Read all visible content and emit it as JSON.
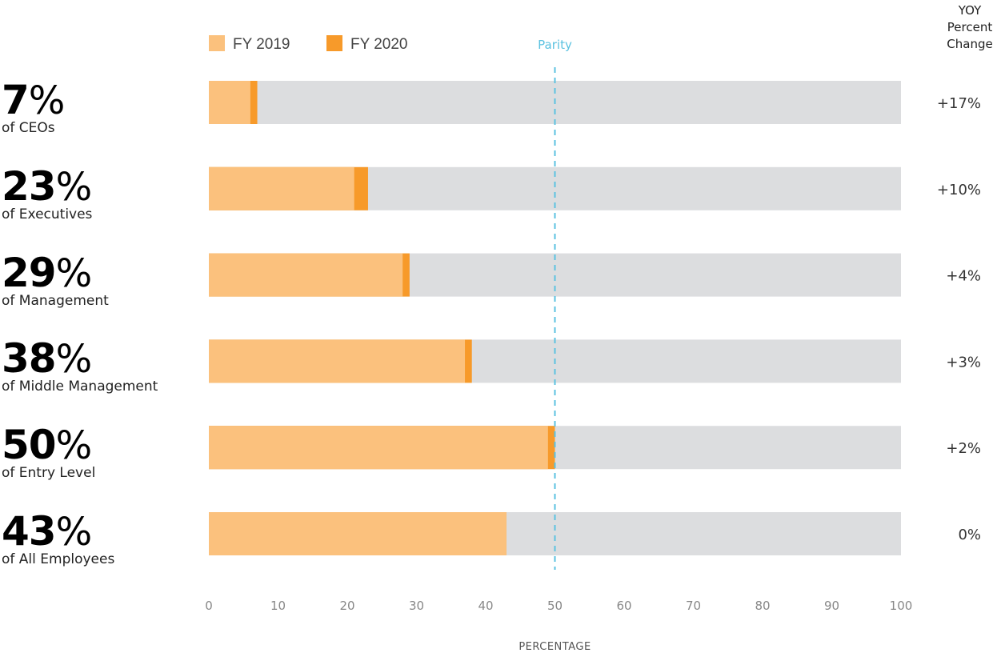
{
  "chart_data": {
    "type": "bar",
    "orientation": "horizontal",
    "stacked": true,
    "categories": [
      "of CEOs",
      "of Executives",
      "of Management",
      "of Middle Management",
      "of Entry Level",
      "of All Employees"
    ],
    "headline_values": [
      "7",
      "23",
      "29",
      "38",
      "50",
      "43"
    ],
    "headline_unit": "%",
    "series": [
      {
        "name": "FY 2019",
        "color": "#fbc17d",
        "values": [
          6,
          21,
          28,
          37,
          49,
          43
        ]
      },
      {
        "name": "FY 2020",
        "color": "#f79a2a",
        "values": [
          7,
          23,
          29,
          38,
          50,
          43
        ]
      }
    ],
    "background_max": 100,
    "background_color": "#dcdddf",
    "xlabel": "PERCENTAGE",
    "xlim": [
      0,
      100
    ],
    "xticks": [
      "0",
      "10",
      "20",
      "30",
      "40",
      "50",
      "60",
      "70",
      "80",
      "90",
      "100"
    ],
    "reference_line": {
      "label": "Parity",
      "value": 50,
      "color": "#5bc2e0"
    },
    "yoy_header": [
      "YOY",
      "Percent",
      "Change"
    ],
    "yoy_change": [
      "+17%",
      "+10%",
      "+4%",
      "+3%",
      "+2%",
      "0%"
    ],
    "legend_position": "top-left",
    "grid": false
  }
}
